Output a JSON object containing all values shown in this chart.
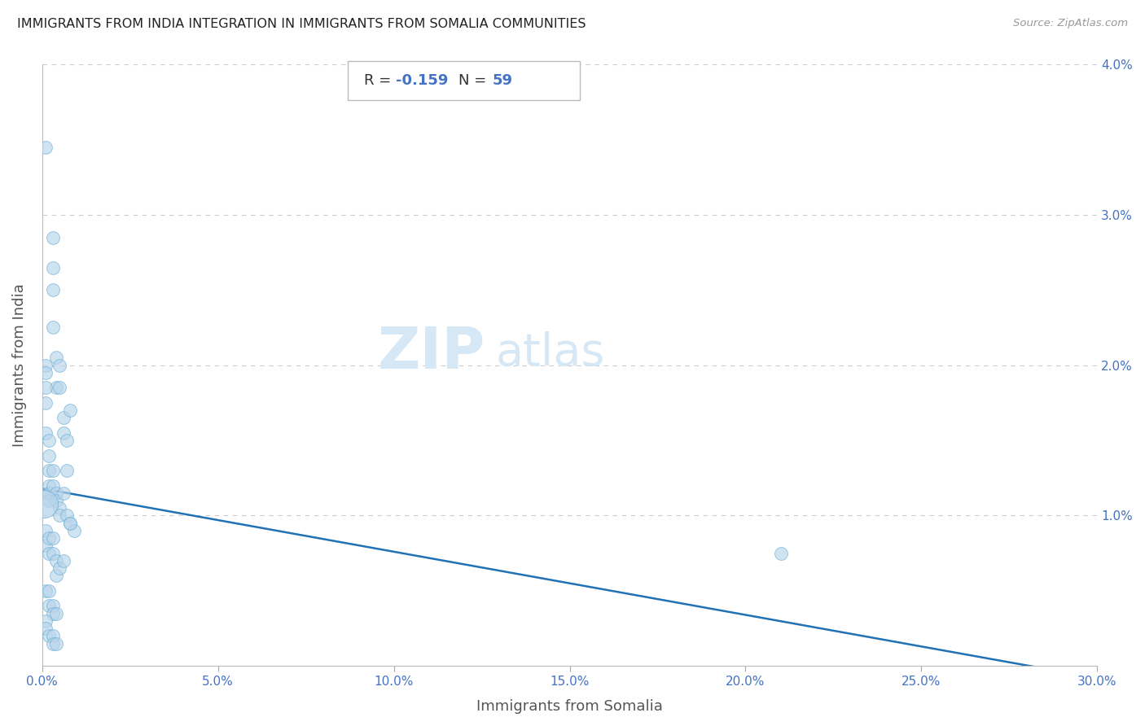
{
  "title": "IMMIGRANTS FROM INDIA INTEGRATION IN IMMIGRANTS FROM SOMALIA COMMUNITIES",
  "source": "Source: ZipAtlas.com",
  "xlabel": "Immigrants from Somalia",
  "ylabel": "Immigrants from India",
  "R_val": -0.159,
  "N_val": 59,
  "xlim": [
    0.0,
    0.3
  ],
  "ylim": [
    0.0,
    0.04
  ],
  "xtick_vals": [
    0.0,
    0.05,
    0.1,
    0.15,
    0.2,
    0.25,
    0.3
  ],
  "xtick_labels": [
    "0.0%",
    "5.0%",
    "10.0%",
    "15.0%",
    "20.0%",
    "25.0%",
    "30.0%"
  ],
  "ytick_vals": [
    0.0,
    0.01,
    0.02,
    0.03,
    0.04
  ],
  "ytick_labels_right": [
    "",
    "1.0%",
    "2.0%",
    "3.0%",
    "4.0%"
  ],
  "scatter_face_color": "#b8d4ea",
  "scatter_edge_color": "#6aaed6",
  "scatter_alpha": 0.65,
  "scatter_size": 130,
  "line_color": "#2171b5",
  "line_y_start": 0.0118,
  "line_y_end": -0.0008,
  "background_color": "#ffffff",
  "grid_color": "#cccccc",
  "title_color": "#222222",
  "axis_label_color": "#555555",
  "tick_color": "#4472c4",
  "watermark_text": "ZIPatlas",
  "watermark_color": "#d6e8f5",
  "R_label_color": "#333333",
  "R_val_color": "#4472c4",
  "N_label_color": "#333333",
  "N_val_color": "#4472c4",
  "scatter_x": [
    0.003,
    0.003,
    0.003,
    0.003,
    0.004,
    0.004,
    0.005,
    0.005,
    0.006,
    0.006,
    0.007,
    0.008,
    0.001,
    0.001,
    0.001,
    0.001,
    0.001,
    0.002,
    0.002,
    0.002,
    0.002,
    0.002,
    0.002,
    0.003,
    0.003,
    0.004,
    0.004,
    0.005,
    0.005,
    0.006,
    0.007,
    0.008,
    0.009,
    0.001,
    0.001,
    0.002,
    0.002,
    0.003,
    0.003,
    0.004,
    0.004,
    0.005,
    0.006,
    0.001,
    0.002,
    0.002,
    0.003,
    0.003,
    0.004,
    0.001,
    0.001,
    0.002,
    0.003,
    0.003,
    0.004,
    0.007,
    0.008,
    0.21,
    0.001
  ],
  "scatter_y": [
    0.0285,
    0.0265,
    0.025,
    0.0225,
    0.0205,
    0.0185,
    0.02,
    0.0185,
    0.0165,
    0.0155,
    0.015,
    0.017,
    0.02,
    0.0195,
    0.0185,
    0.0175,
    0.0155,
    0.015,
    0.014,
    0.013,
    0.012,
    0.0115,
    0.011,
    0.013,
    0.012,
    0.0115,
    0.011,
    0.0105,
    0.01,
    0.0115,
    0.01,
    0.0095,
    0.009,
    0.009,
    0.008,
    0.0085,
    0.0075,
    0.0085,
    0.0075,
    0.007,
    0.006,
    0.0065,
    0.007,
    0.005,
    0.005,
    0.004,
    0.004,
    0.0035,
    0.0035,
    0.003,
    0.0025,
    0.002,
    0.002,
    0.0015,
    0.0015,
    0.013,
    0.0095,
    0.0075,
    0.0345
  ]
}
